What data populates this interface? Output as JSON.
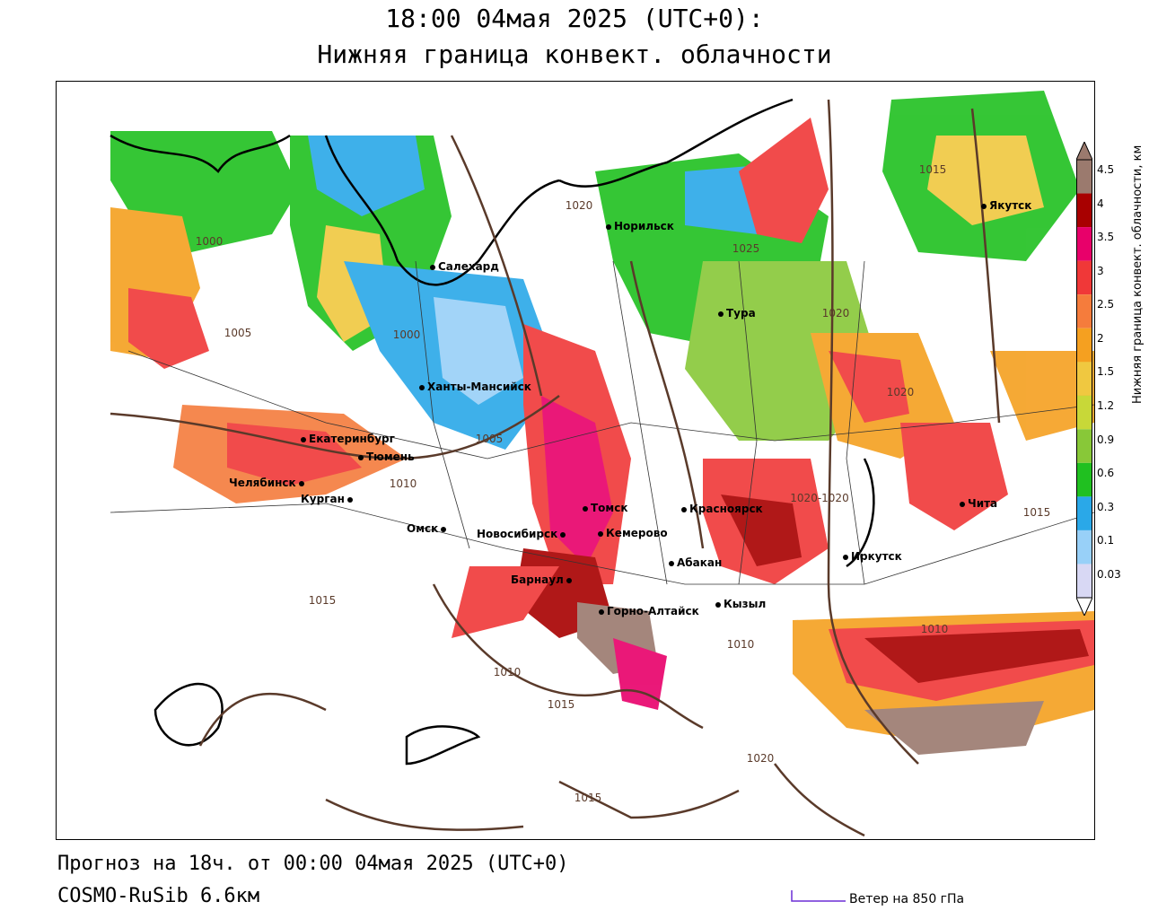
{
  "title": {
    "line1": "18:00 04мая 2025 (UTC+0):",
    "line2": "Нижняя граница конвект. облачности"
  },
  "footer": {
    "forecast": "Прогноз на 18ч. от 00:00 04мая 2025 (UTC+0)",
    "model": "COSMO-RuSib 6.6км",
    "wind_legend": "Ветер на 850 гПа"
  },
  "legend": {
    "title": "Нижняя граница конвект. облачности, км",
    "ticks": [
      "4.5",
      "4",
      "3.5",
      "3",
      "2.5",
      "2",
      "1.5",
      "1.2",
      "0.9",
      "0.6",
      "0.3",
      "0.1",
      "0.03"
    ],
    "colors": [
      "#9b7a6e",
      "#a80000",
      "#e8006a",
      "#f03838",
      "#f57c3c",
      "#f5a020",
      "#f0c840",
      "#c8d838",
      "#88c838",
      "#20c020",
      "#2aa8e8",
      "#98d0f8",
      "#d8d8f4"
    ]
  },
  "cities": [
    {
      "name": "Норильск"
    },
    {
      "name": "Якутск"
    },
    {
      "name": "Салехард"
    },
    {
      "name": "Тура"
    },
    {
      "name": "Ханты-Мансийск"
    },
    {
      "name": "Екатеринбург"
    },
    {
      "name": "Тюмень"
    },
    {
      "name": "Челябинск"
    },
    {
      "name": "Курган"
    },
    {
      "name": "Омск"
    },
    {
      "name": "Новосибирск"
    },
    {
      "name": "Томск"
    },
    {
      "name": "Кемерово"
    },
    {
      "name": "Красноярск"
    },
    {
      "name": "Барнаул"
    },
    {
      "name": "Абакан"
    },
    {
      "name": "Горно-Алтайск"
    },
    {
      "name": "Кызыл"
    },
    {
      "name": "Иркутск"
    },
    {
      "name": "Чита"
    }
  ],
  "isobars": [
    "1020",
    "1015",
    "1000",
    "1025",
    "1020",
    "1005",
    "1000",
    "1005",
    "1010",
    "1020",
    "1020-1020",
    "1015",
    "1015",
    "1010",
    "1010",
    "1015",
    "1020",
    "1015",
    "1010"
  ]
}
